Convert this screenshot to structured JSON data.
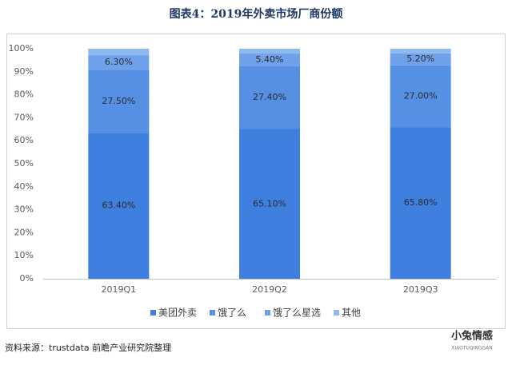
{
  "chart_data": {
    "type": "stacked_bar",
    "title": "图表4：2019年外卖市场厂商份额",
    "categories": [
      "2019Q1",
      "2019Q2",
      "2019Q3"
    ],
    "series": [
      {
        "name": "美团外卖",
        "color": "#3f7fdf",
        "values": [
          63.4,
          65.1,
          65.8
        ],
        "value_labels": [
          "63.40%",
          "65.10%",
          "65.80%"
        ]
      },
      {
        "name": "饿了么",
        "color": "#5690e4",
        "values": [
          27.5,
          27.4,
          27.0
        ],
        "value_labels": [
          "27.50%",
          "27.40%",
          "27.00%"
        ]
      },
      {
        "name": "饿了么星选",
        "color": "#6fa1ea",
        "values": [
          6.3,
          5.4,
          5.2
        ],
        "value_labels": [
          "6.30%",
          "5.40%",
          "5.20%"
        ]
      },
      {
        "name": "其他",
        "color": "#8fb7f0",
        "values": [
          2.8,
          2.1,
          2.0
        ]
      }
    ],
    "ylim": [
      0,
      100
    ],
    "yticks": [
      {
        "value": 0,
        "label": "0%"
      },
      {
        "value": 10,
        "label": "10%"
      },
      {
        "value": 20,
        "label": "20%"
      },
      {
        "value": 30,
        "label": "30%"
      },
      {
        "value": 40,
        "label": "40%"
      },
      {
        "value": 50,
        "label": "50%"
      },
      {
        "value": 60,
        "label": "60%"
      },
      {
        "value": 70,
        "label": "70%"
      },
      {
        "value": 80,
        "label": "80%"
      },
      {
        "value": 90,
        "label": "90%"
      },
      {
        "value": 100,
        "label": "100%"
      }
    ],
    "grid": false,
    "source": "资料来源：trustdata 前瞻产业研究院整理",
    "watermark": {
      "name": "小兔情感",
      "subtitle": "XIAOTUQINGGAN"
    }
  }
}
